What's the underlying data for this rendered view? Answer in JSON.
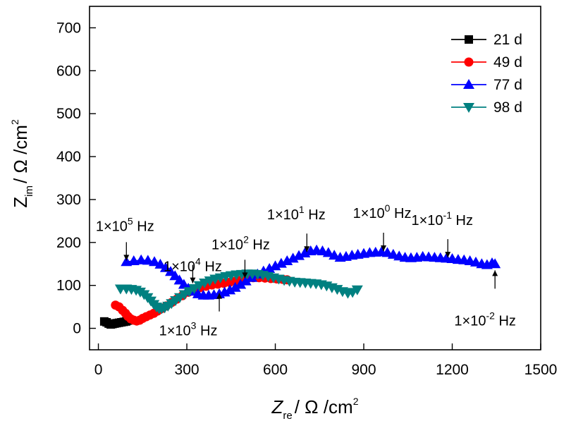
{
  "chart_data": {
    "type": "scatter",
    "xlim": [
      -30,
      1500
    ],
    "ylim": [
      -50,
      750
    ],
    "xticks": [
      0,
      300,
      600,
      900,
      1200,
      1500
    ],
    "yticks": [
      0,
      100,
      200,
      300,
      400,
      500,
      600,
      700
    ],
    "xtick_labels": [
      "0",
      "300",
      "600",
      "900",
      "1200",
      "1500"
    ],
    "ytick_labels": [
      "0",
      "100",
      "200",
      "300",
      "400",
      "500",
      "600",
      "700"
    ],
    "xlabel": {
      "main": "Z",
      "sub": "re",
      "unit": "/ Ω /cm",
      "sup": "2"
    },
    "ylabel": {
      "main": "Z",
      "sub": "im",
      "unit": "/ Ω /cm",
      "sup": "2"
    },
    "grid": false,
    "legend_position": "top-right",
    "series": [
      {
        "name": "21 d",
        "color": "#000000",
        "marker": "square",
        "points": [
          [
            20,
            16
          ],
          [
            28,
            14
          ],
          [
            35,
            11
          ],
          [
            42,
            9
          ],
          [
            48,
            10
          ],
          [
            55,
            11
          ],
          [
            62,
            12
          ],
          [
            70,
            13
          ],
          [
            78,
            14
          ],
          [
            86,
            15
          ],
          [
            94,
            16
          ],
          [
            100,
            18
          ]
        ]
      },
      {
        "name": "49 d",
        "color": "#ff0000",
        "marker": "circle",
        "points": [
          [
            58,
            54
          ],
          [
            70,
            50
          ],
          [
            82,
            42
          ],
          [
            92,
            35
          ],
          [
            100,
            28
          ],
          [
            110,
            22
          ],
          [
            120,
            19
          ],
          [
            130,
            17
          ],
          [
            140,
            19
          ],
          [
            150,
            23
          ],
          [
            162,
            27
          ],
          [
            175,
            31
          ],
          [
            188,
            35
          ],
          [
            200,
            40
          ],
          [
            215,
            46
          ],
          [
            230,
            52
          ],
          [
            248,
            60
          ],
          [
            266,
            68
          ],
          [
            285,
            76
          ],
          [
            305,
            84
          ],
          [
            325,
            90
          ],
          [
            345,
            95
          ],
          [
            365,
            98
          ],
          [
            385,
            101
          ],
          [
            405,
            103
          ],
          [
            425,
            105
          ],
          [
            445,
            107
          ],
          [
            465,
            110
          ],
          [
            485,
            113
          ],
          [
            505,
            116
          ],
          [
            525,
            118
          ],
          [
            545,
            118
          ],
          [
            565,
            117
          ],
          [
            585,
            116
          ],
          [
            605,
            115
          ],
          [
            625,
            114
          ],
          [
            640,
            113
          ]
        ]
      },
      {
        "name": "77 d",
        "color": "#0000ff",
        "marker": "triangle-up",
        "points": [
          [
            95,
            155
          ],
          [
            120,
            157
          ],
          [
            145,
            159
          ],
          [
            168,
            158
          ],
          [
            190,
            155
          ],
          [
            210,
            149
          ],
          [
            228,
            141
          ],
          [
            245,
            132
          ],
          [
            260,
            122
          ],
          [
            275,
            112
          ],
          [
            290,
            102
          ],
          [
            305,
            93
          ],
          [
            320,
            86
          ],
          [
            338,
            80
          ],
          [
            356,
            77
          ],
          [
            374,
            77
          ],
          [
            392,
            78
          ],
          [
            410,
            80
          ],
          [
            428,
            84
          ],
          [
            446,
            89
          ],
          [
            464,
            95
          ],
          [
            482,
            102
          ],
          [
            500,
            110
          ],
          [
            520,
            118
          ],
          [
            540,
            126
          ],
          [
            560,
            133
          ],
          [
            580,
            139
          ],
          [
            600,
            145
          ],
          [
            620,
            151
          ],
          [
            640,
            157
          ],
          [
            660,
            163
          ],
          [
            680,
            169
          ],
          [
            700,
            175
          ],
          [
            720,
            180
          ],
          [
            740,
            182
          ],
          [
            760,
            180
          ],
          [
            780,
            176
          ],
          [
            800,
            170
          ],
          [
            820,
            165
          ],
          [
            840,
            167
          ],
          [
            860,
            170
          ],
          [
            880,
            172
          ],
          [
            900,
            174
          ],
          [
            920,
            176
          ],
          [
            940,
            177
          ],
          [
            960,
            178
          ],
          [
            980,
            176
          ],
          [
            1000,
            172
          ],
          [
            1020,
            168
          ],
          [
            1040,
            165
          ],
          [
            1060,
            164
          ],
          [
            1080,
            165
          ],
          [
            1100,
            167
          ],
          [
            1120,
            166
          ],
          [
            1140,
            165
          ],
          [
            1160,
            164
          ],
          [
            1180,
            163
          ],
          [
            1200,
            162
          ],
          [
            1220,
            160
          ],
          [
            1240,
            159
          ],
          [
            1260,
            157
          ],
          [
            1280,
            154
          ],
          [
            1300,
            150
          ],
          [
            1318,
            148
          ],
          [
            1335,
            152
          ],
          [
            1345,
            150
          ]
        ]
      },
      {
        "name": "98 d",
        "color": "#008080",
        "marker": "triangle-down",
        "points": [
          [
            75,
            92
          ],
          [
            95,
            92
          ],
          [
            112,
            91
          ],
          [
            128,
            89
          ],
          [
            142,
            85
          ],
          [
            155,
            79
          ],
          [
            167,
            72
          ],
          [
            178,
            64
          ],
          [
            188,
            56
          ],
          [
            197,
            50
          ],
          [
            206,
            46
          ],
          [
            215,
            46
          ],
          [
            225,
            48
          ],
          [
            236,
            52
          ],
          [
            248,
            58
          ],
          [
            262,
            65
          ],
          [
            276,
            72
          ],
          [
            292,
            79
          ],
          [
            308,
            86
          ],
          [
            325,
            93
          ],
          [
            342,
            100
          ],
          [
            360,
            106
          ],
          [
            378,
            111
          ],
          [
            396,
            115
          ],
          [
            414,
            118
          ],
          [
            432,
            121
          ],
          [
            450,
            123
          ],
          [
            468,
            125
          ],
          [
            486,
            126
          ],
          [
            504,
            127
          ],
          [
            522,
            127
          ],
          [
            540,
            126
          ],
          [
            558,
            124
          ],
          [
            576,
            121
          ],
          [
            594,
            118
          ],
          [
            612,
            115
          ],
          [
            630,
            112
          ],
          [
            648,
            110
          ],
          [
            666,
            108
          ],
          [
            684,
            107
          ],
          [
            702,
            106
          ],
          [
            720,
            105
          ],
          [
            738,
            104
          ],
          [
            756,
            102
          ],
          [
            774,
            99
          ],
          [
            792,
            95
          ],
          [
            810,
            91
          ],
          [
            828,
            86
          ],
          [
            846,
            82
          ],
          [
            862,
            84
          ],
          [
            878,
            90
          ]
        ]
      }
    ],
    "annotations": [
      {
        "label": "1×10",
        "exp": "5",
        "unit": " Hz",
        "tip": [
          95,
          158
        ],
        "dir": "down"
      },
      {
        "label": "1×10",
        "exp": "4",
        "unit": " Hz",
        "tip": [
          320,
          105
        ],
        "dir": "down"
      },
      {
        "label": "1×10",
        "exp": "3",
        "unit": " Hz",
        "tip": [
          410,
          82
        ],
        "dir": "up"
      },
      {
        "label": "1×10",
        "exp": "2",
        "unit": " Hz",
        "tip": [
          497,
          117
        ],
        "dir": "down"
      },
      {
        "label": "1×10",
        "exp": "1",
        "unit": " Hz",
        "tip": [
          707,
          178
        ],
        "dir": "down"
      },
      {
        "label": "1×10",
        "exp": "0",
        "unit": " Hz",
        "tip": [
          967,
          180
        ],
        "dir": "down"
      },
      {
        "label": "1×10",
        "exp": "-1",
        "unit": " Hz",
        "tip": [
          1185,
          165
        ],
        "dir": "down"
      },
      {
        "label": "1×10",
        "exp": "-2",
        "unit": " Hz",
        "tip": [
          1345,
          135
        ],
        "dir": "up"
      }
    ]
  }
}
